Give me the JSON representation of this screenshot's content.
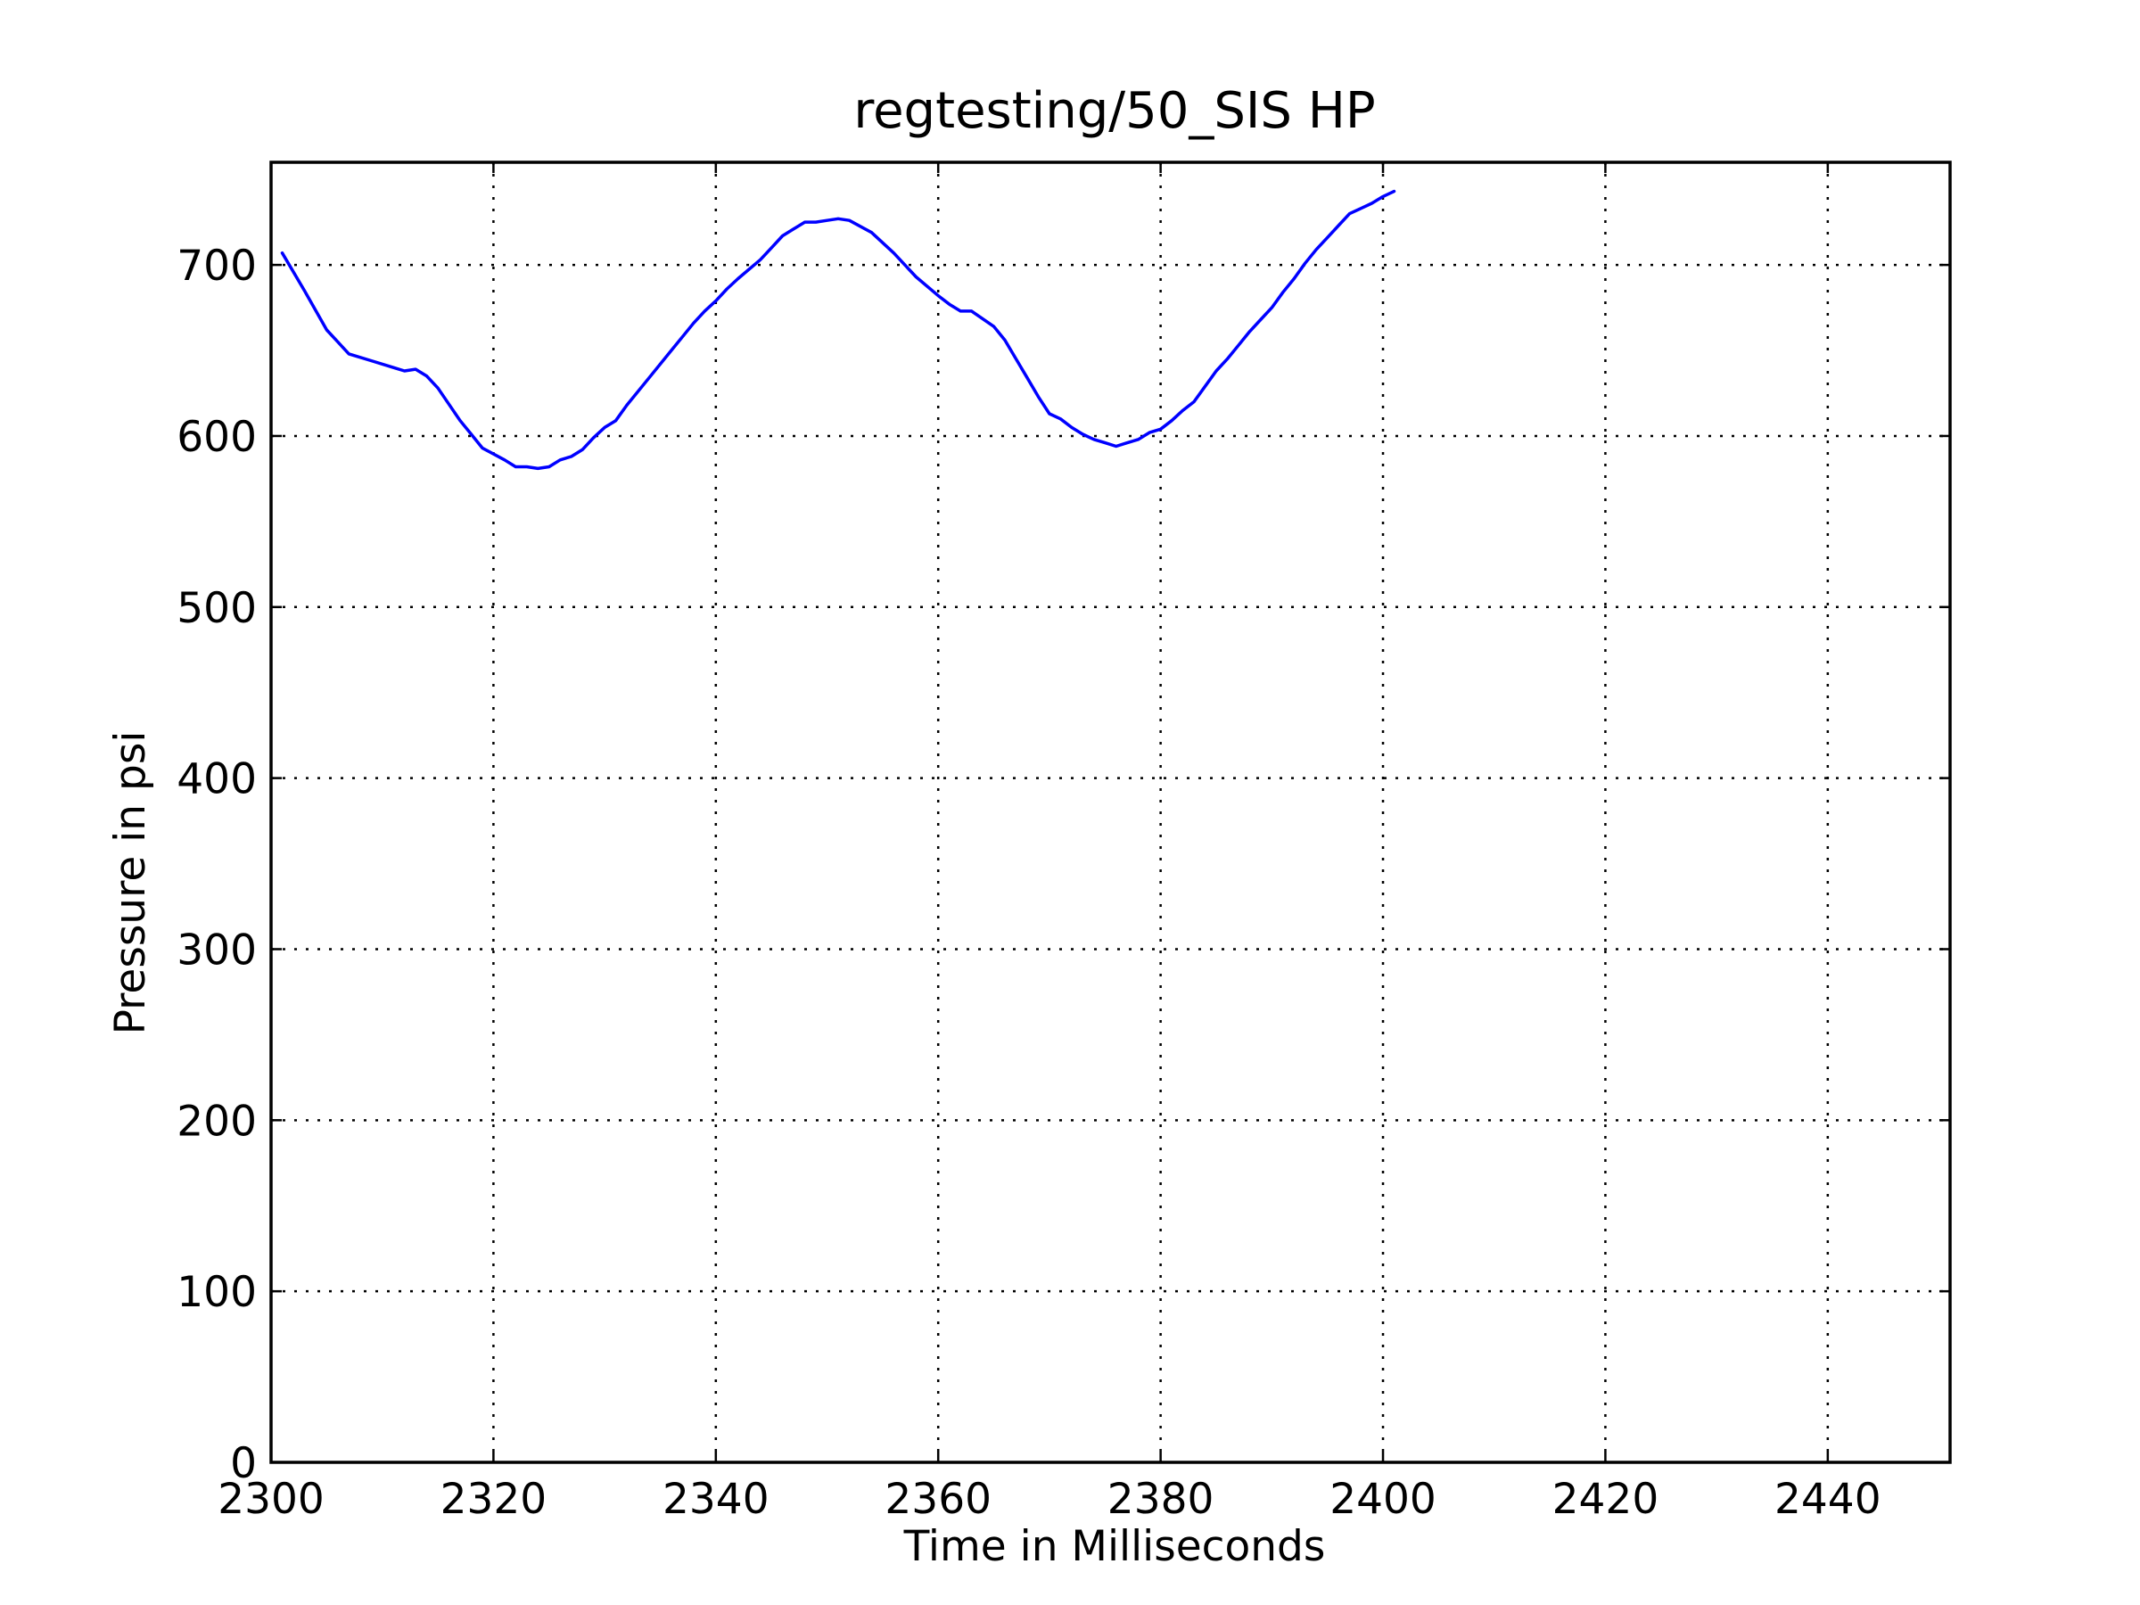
{
  "chart_data": {
    "type": "line",
    "title": "regtesting/50_SIS HP",
    "xlabel": "Time in Milliseconds",
    "ylabel": "Pressure in psi",
    "xlim": [
      2300,
      2451
    ],
    "ylim": [
      0,
      760
    ],
    "xticks": [
      "2300",
      "2320",
      "2340",
      "2360",
      "2380",
      "2400",
      "2420",
      "2440"
    ],
    "yticks": [
      "0",
      "100",
      "200",
      "300",
      "400",
      "500",
      "600",
      "700"
    ],
    "grid": true,
    "colors": {
      "series": "#0000ff",
      "axes": "#000000",
      "background": "#ffffff"
    },
    "series": [
      {
        "x": [
          2301,
          2303,
          2305,
          2307,
          2309,
          2311,
          2312,
          2313,
          2314,
          2315,
          2317,
          2318,
          2319,
          2321,
          2322,
          2323,
          2324,
          2325,
          2326,
          2327,
          2328,
          2329,
          2330,
          2331,
          2332,
          2334,
          2336,
          2337,
          2338,
          2339,
          2340,
          2341,
          2342,
          2344,
          2345,
          2346,
          2347,
          2348,
          2349,
          2350,
          2351,
          2352,
          2354,
          2356,
          2358,
          2360,
          2361,
          2362,
          2363,
          2365,
          2366,
          2367,
          2368,
          2369,
          2370,
          2371,
          2372,
          2373,
          2374,
          2375,
          2376,
          2377,
          2378,
          2379,
          2380,
          2381,
          2382,
          2383,
          2384,
          2385,
          2386,
          2387,
          2388,
          2389,
          2390,
          2391,
          2392,
          2393,
          2394,
          2395,
          2396,
          2397,
          2398,
          2399,
          2400,
          2401
        ],
        "y": [
          707,
          685,
          662,
          648,
          644,
          640,
          638,
          639,
          635,
          628,
          609,
          601,
          593,
          586,
          582,
          582,
          581,
          582,
          586,
          588,
          592,
          599,
          605,
          609,
          618,
          634,
          650,
          658,
          666,
          673,
          679,
          686,
          692,
          703,
          710,
          717,
          721,
          725,
          725,
          726,
          727,
          726,
          719,
          707,
          693,
          682,
          677,
          673,
          673,
          664,
          656,
          645,
          634,
          623,
          613,
          610,
          605,
          601,
          598,
          596,
          594,
          596,
          598,
          602,
          604,
          609,
          615,
          620,
          629,
          638,
          645,
          653,
          661,
          668,
          675,
          684,
          692,
          701,
          709,
          716,
          723,
          730,
          733,
          736,
          740,
          743
        ]
      }
    ]
  }
}
